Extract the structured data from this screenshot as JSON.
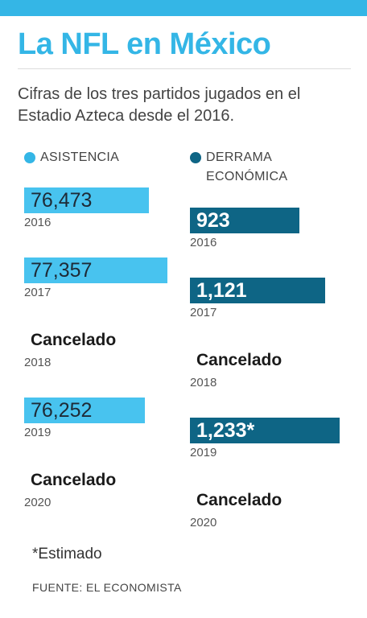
{
  "header": {
    "title": "La NFL en México",
    "subtitle": "Cifras de los tres partidos jugados en el Estadio Azteca desde el 2016."
  },
  "chart_data": {
    "type": "bar",
    "orientation": "horizontal",
    "title": "La NFL en México",
    "subtitle": "Cifras de los tres partidos jugados en el Estadio Azteca desde el 2016.",
    "categories": [
      "2016",
      "2017",
      "2018",
      "2019",
      "2020"
    ],
    "series": [
      {
        "name": "ASISTENCIA",
        "color": "#48c3ef",
        "values": [
          76473,
          77357,
          null,
          76252,
          null
        ],
        "labels": [
          "76,473",
          "77,357",
          "Cancelado",
          "76,252",
          "Cancelado"
        ]
      },
      {
        "name": "DERRAMA ECONÓMICA",
        "color": "#0e6585",
        "values": [
          923,
          1121,
          null,
          1233,
          null
        ],
        "labels": [
          "923",
          "1,121",
          "Cancelado",
          "1,233*",
          "Cancelado"
        ]
      }
    ],
    "note": "*Estimado",
    "source": "FUENTE: EL ECONOMISTA"
  }
}
